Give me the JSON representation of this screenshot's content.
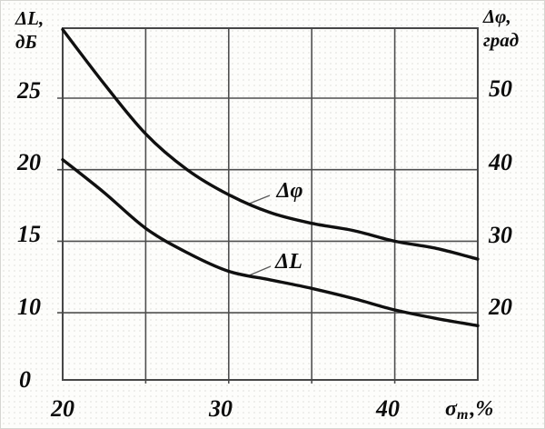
{
  "labels": {
    "y_left_title_line1": "ΔL,",
    "y_left_title_line2": "дБ",
    "y_right_title_line1": "Δφ,",
    "y_right_title_line2": "град",
    "y_left_ticks": [
      "25",
      "20",
      "15",
      "10",
      "0"
    ],
    "y_right_ticks": [
      "50",
      "40",
      "30",
      "20"
    ],
    "x_ticks": [
      "20",
      "30",
      "40"
    ],
    "x_symbol": "σ",
    "x_symbol_sub": "m",
    "x_symbol_suffix": ",%",
    "curve_phi_label": "Δφ",
    "curve_L_label": "ΔL"
  },
  "colors": {
    "curve": "#101010",
    "grid": "#4f4f4f",
    "frame": "#474747",
    "leader": "#5a5a5a",
    "text": "#0c0c0c"
  },
  "chart_data": {
    "type": "line",
    "title": "",
    "xlabel": "σm, %",
    "ylabel_left": "ΔL, дБ",
    "ylabel_right": "Δφ, град",
    "x": [
      20,
      22.5,
      25,
      27.5,
      30,
      32.5,
      35,
      37.5,
      40,
      42.5,
      45
    ],
    "xlim": [
      20,
      45
    ],
    "ylim_left": [
      0,
      30
    ],
    "ylim_right": [
      0,
      60
    ],
    "x_tick_values": [
      20,
      30,
      40
    ],
    "y_left_tick_values": [
      25,
      20,
      15,
      10,
      0
    ],
    "y_right_tick_values": [
      50,
      40,
      30,
      20
    ],
    "x_gridlines": [
      25,
      30,
      35,
      40
    ],
    "y_gridlines_left": [
      25,
      20,
      15,
      10
    ],
    "grid": true,
    "legend_position": "inline curve labels with leader lines",
    "series": [
      {
        "name": "Δφ",
        "axis": "right",
        "unit": "град",
        "values": [
          60,
          52,
          45,
          40,
          36.5,
          34,
          32.5,
          31.5,
          30,
          29,
          27.5
        ]
      },
      {
        "name": "ΔL",
        "axis": "left",
        "unit": "дБ",
        "values": [
          20.7,
          18.4,
          15.9,
          14.2,
          12.9,
          12.3,
          11.7,
          11.0,
          10.2,
          9.6,
          9.1
        ]
      }
    ]
  }
}
